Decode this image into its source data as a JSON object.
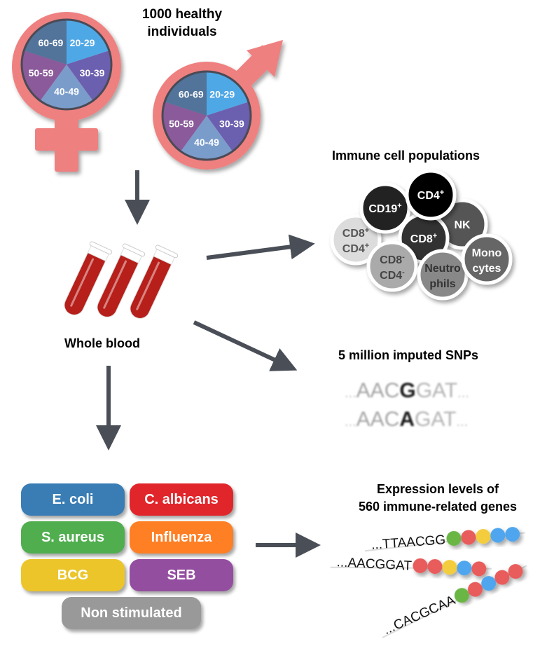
{
  "population": {
    "title_line1": "1000 healthy",
    "title_line2": "individuals",
    "age_groups": [
      "20-29",
      "30-39",
      "40-49",
      "50-59",
      "60-69"
    ],
    "age_colors": [
      "#4fa8e6",
      "#6b5fb0",
      "#7a9ccb",
      "#8a5a9a",
      "#52739a"
    ],
    "symbol_color": "#ef8080",
    "symbols": [
      "female-icon",
      "male-icon"
    ]
  },
  "blood": {
    "label": "Whole blood",
    "tube_color": "#b61f1a"
  },
  "immune": {
    "title": "Immune cell populations",
    "cells": [
      {
        "line1": "CD8",
        "sup1": "+",
        "line2": "CD4",
        "sup2": "+",
        "fill": "#dcdcdc",
        "text": "#555555"
      },
      {
        "line1": "CD19",
        "sup1": "+",
        "line2": "",
        "sup2": "",
        "fill": "#222222",
        "text": "#ffffff"
      },
      {
        "line1": "NK",
        "sup1": "",
        "line2": "",
        "sup2": "",
        "fill": "#555555",
        "text": "#ffffff"
      },
      {
        "line1": "CD8",
        "sup1": "+",
        "line2": "",
        "sup2": "",
        "fill": "#333333",
        "text": "#ffffff"
      },
      {
        "line1": "CD4",
        "sup1": "+",
        "line2": "",
        "sup2": "",
        "fill": "#000000",
        "text": "#ffffff"
      },
      {
        "line1": "CD8",
        "sup1": "-",
        "line2": "CD4",
        "sup2": "-",
        "fill": "#aaaaaa",
        "text": "#444444"
      },
      {
        "line1": "Neutro",
        "sup1": "",
        "line2": "phils",
        "sup2": "",
        "fill": "#888888",
        "text": "#333333"
      },
      {
        "line1": "Mono",
        "sup1": "",
        "line2": "cytes",
        "sup2": "",
        "fill": "#666666",
        "text": "#ffffff"
      }
    ]
  },
  "snps": {
    "title": "5 million imputed SNPs",
    "seq1": {
      "pre": "...",
      "left": "AAC",
      "allele": "G",
      "right": "GAT",
      "post": "..."
    },
    "seq2": {
      "pre": "...",
      "left": "AAC",
      "allele": "A",
      "right": "GAT",
      "post": "..."
    }
  },
  "expression": {
    "title_line1": "Expression levels of",
    "title_line2": "560 immune-related genes",
    "bead_colors": {
      "green": "#6bb644",
      "red": "#e85c5c",
      "yellow": "#f3cd3c",
      "blue": "#4fa6ee"
    },
    "strands": [
      {
        "seq": "...TTAACGG",
        "beads": [
          "green",
          "red",
          "yellow",
          "blue",
          "blue"
        ]
      },
      {
        "seq": "...AACGGAT",
        "beads": [
          "red",
          "red",
          "yellow",
          "blue",
          "red"
        ]
      },
      {
        "seq": "...CACGCAA",
        "beads": [
          "green",
          "red",
          "blue",
          "red",
          "red"
        ]
      }
    ]
  },
  "stimuli": [
    {
      "label": "E. coli",
      "color": "#3a7db5"
    },
    {
      "label": "C. albicans",
      "color": "#e1262b"
    },
    {
      "label": "S. aureus",
      "color": "#50ae4f"
    },
    {
      "label": "Influenza",
      "color": "#ff7f24"
    },
    {
      "label": "BCG",
      "color": "#ebc52a"
    },
    {
      "label": "SEB",
      "color": "#944ea0"
    },
    {
      "label": "Non stimulated",
      "color": "#999999"
    }
  ],
  "arrow_color": "#4a4f57"
}
